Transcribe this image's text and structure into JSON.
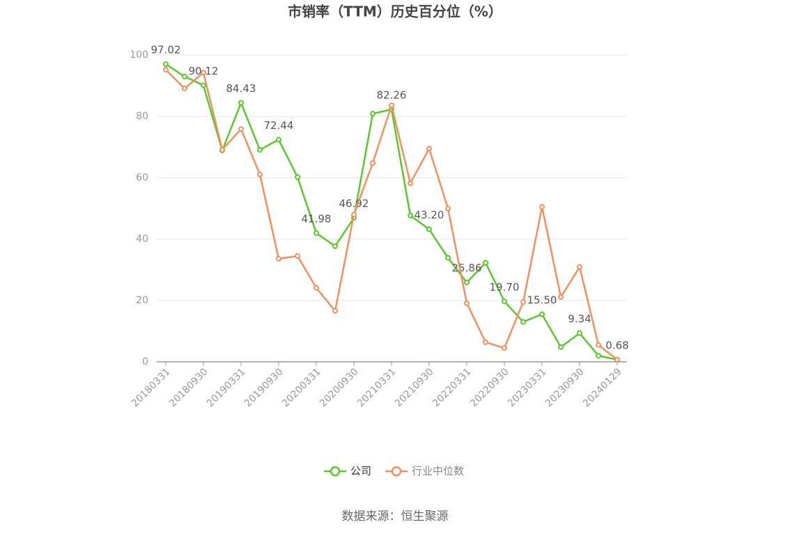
{
  "chart_data": {
    "type": "line",
    "title": "市销率（TTM）历史百分位（%）",
    "source": "数据来源：恒生聚源",
    "categories": [
      "20180331",
      null,
      "20180930",
      null,
      "20190331",
      null,
      "20190930",
      null,
      "20200331",
      null,
      "20200930",
      null,
      "20210331",
      null,
      "20210930",
      null,
      "20220331",
      null,
      "20220930",
      null,
      "20230331",
      null,
      "20230930",
      null,
      "20240129"
    ],
    "series": [
      {
        "name": "公司",
        "color": "#5cc62d",
        "values": [
          97.02,
          93.0,
          90.12,
          68.9,
          84.43,
          69.1,
          72.44,
          60.2,
          41.98,
          37.7,
          46.92,
          80.9,
          82.26,
          47.7,
          43.2,
          33.9,
          25.86,
          32.3,
          19.7,
          13.0,
          15.5,
          4.8,
          9.34,
          2.0,
          0.68
        ],
        "value_labels": [
          "97.02",
          null,
          "90.12",
          null,
          "84.43",
          null,
          "72.44",
          null,
          "41.98",
          null,
          "46.92",
          null,
          "82.26",
          null,
          "43.20",
          null,
          "25.86",
          null,
          "19.70",
          null,
          "15.50",
          null,
          "9.34",
          null,
          "0.68"
        ]
      },
      {
        "name": "行业中位数",
        "color": "#f0905e",
        "values": [
          95.2,
          89.1,
          94.3,
          69.1,
          75.9,
          61.1,
          33.6,
          34.5,
          24.1,
          16.6,
          48.0,
          64.8,
          83.6,
          58.2,
          69.5,
          50.0,
          19.1,
          6.4,
          4.5,
          19.5,
          50.5,
          21.1,
          30.9,
          5.5,
          0.7
        ]
      }
    ],
    "ylim": [
      0,
      100
    ],
    "yticks": [
      0,
      20,
      40,
      60,
      80,
      100
    ],
    "grid": true
  }
}
